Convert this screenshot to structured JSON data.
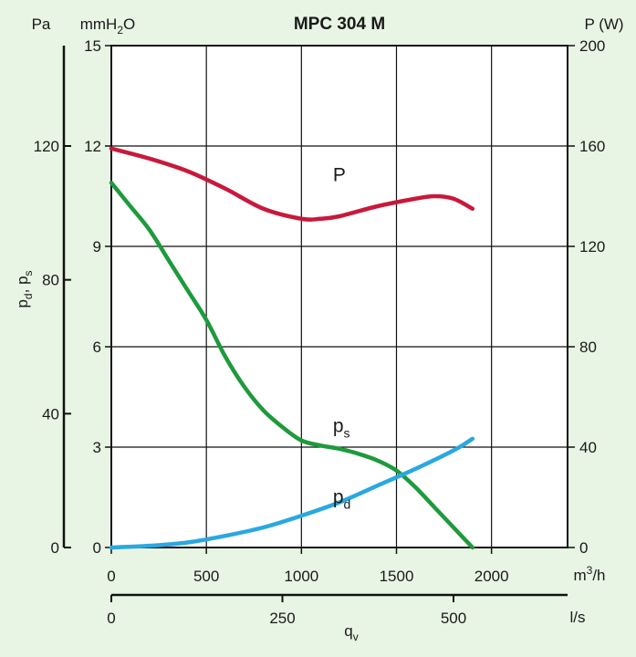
{
  "chart_data": {
    "type": "line",
    "title": "MPC 304 M",
    "x": {
      "label": "qv",
      "label_main": "q",
      "label_sub": "v",
      "unit": "m³/h",
      "unit_main": "m",
      "unit_sup": "3",
      "unit_rest": "/h",
      "range": [
        0,
        2400
      ],
      "ticks": [
        "0",
        "500",
        "1000",
        "1500",
        "2000"
      ]
    },
    "x_secondary": {
      "unit": "l/s",
      "ticks": [
        "0",
        "250",
        "500"
      ]
    },
    "y_left_outer": {
      "unit": "Pa",
      "label": "pd, ps",
      "label_parts": [
        "p",
        "d",
        ", p",
        "s"
      ],
      "range": [
        0,
        150
      ],
      "ticks": [
        "0",
        "40",
        "80",
        "120"
      ]
    },
    "y_left_inner": {
      "unit": "mmH2O",
      "unit_main": "mmH",
      "unit_sub": "2",
      "unit_rest": "O",
      "range": [
        0,
        15
      ],
      "ticks": [
        "0",
        "3",
        "6",
        "9",
        "12",
        "15"
      ]
    },
    "y_right": {
      "unit": "P (W)",
      "range": [
        0,
        200
      ],
      "ticks": [
        "0",
        "40",
        "80",
        "120",
        "160",
        "200"
      ]
    },
    "grid": true,
    "series": [
      {
        "name": "P",
        "label_main": "P",
        "label_sub": "",
        "axis": "right",
        "color": "#c8193c",
        "x": [
          0,
          200,
          400,
          600,
          800,
          1000,
          1100,
          1200,
          1400,
          1600,
          1700,
          1800,
          1900
        ],
        "y": [
          159,
          155,
          150,
          143,
          135,
          131,
          131,
          132,
          136,
          139,
          140,
          139,
          135
        ]
      },
      {
        "name": "ps",
        "label_main": "p",
        "label_sub": "s",
        "axis": "left_outer",
        "color": "#1e9a3c",
        "x": [
          0,
          100,
          200,
          300,
          400,
          500,
          600,
          700,
          800,
          900,
          1000,
          1100,
          1200,
          1300,
          1400,
          1500,
          1600,
          1700,
          1800,
          1900
        ],
        "y": [
          109,
          102,
          95,
          86,
          77,
          68,
          57,
          48,
          41,
          36,
          32,
          30.5,
          29.5,
          28,
          26,
          23,
          18,
          12,
          6,
          0
        ]
      },
      {
        "name": "pd",
        "label_main": "p",
        "label_sub": "d",
        "axis": "left_outer",
        "color": "#2aa8e0",
        "x": [
          0,
          200,
          400,
          600,
          800,
          1000,
          1200,
          1400,
          1600,
          1800,
          1900
        ],
        "y": [
          0,
          0.5,
          1.5,
          3.5,
          6,
          9.5,
          13.5,
          18.5,
          23.5,
          29,
          32.5
        ]
      }
    ]
  }
}
